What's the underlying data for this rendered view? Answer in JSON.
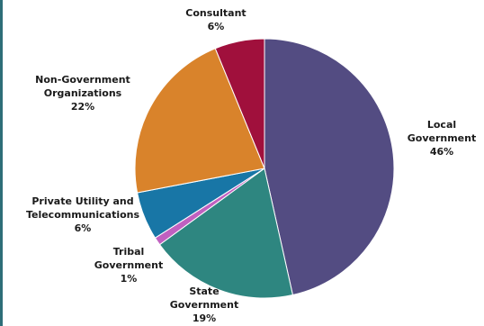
{
  "chart_data": {
    "type": "pie",
    "title": "",
    "start_angle_deg": 0,
    "direction": "clockwise",
    "slices": [
      {
        "label_lines": [
          "Local",
          "Government"
        ],
        "value_label": "46%",
        "value": 46.5,
        "color": "#534c82"
      },
      {
        "label_lines": [
          "State",
          "Government"
        ],
        "value_label": "19%",
        "value": 18.5,
        "color": "#2e8680"
      },
      {
        "label_lines": [
          "Tribal",
          "Government"
        ],
        "value_label": "1%",
        "value": 1.0,
        "color": "#c060c0"
      },
      {
        "label_lines": [
          "Private Utility and",
          "Telecommunications"
        ],
        "value_label": "6%",
        "value": 6.0,
        "color": "#1876a6"
      },
      {
        "label_lines": [
          "Non-Government",
          "Organizations"
        ],
        "value_label": "22%",
        "value": 21.8,
        "color": "#d9832b"
      },
      {
        "label_lines": [
          "Consultant"
        ],
        "value_label": "6%",
        "value": 6.2,
        "color": "#a0103c"
      }
    ]
  }
}
